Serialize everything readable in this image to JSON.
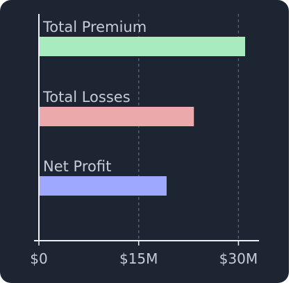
{
  "chart_data": {
    "type": "bar",
    "orientation": "horizontal",
    "categories": [
      "Total Premium",
      "Total Losses",
      "Net Profit"
    ],
    "values": [
      31,
      23.3,
      19.2
    ],
    "unit": "$M",
    "xlim": [
      0,
      33
    ],
    "xticks": [
      0,
      15,
      30
    ],
    "xtick_labels": [
      "$0",
      "$15M",
      "$30M"
    ],
    "gridlines": "x-dashed",
    "colors": [
      "#a8ebbf",
      "#eba9ab",
      "#9da8fe"
    ]
  }
}
